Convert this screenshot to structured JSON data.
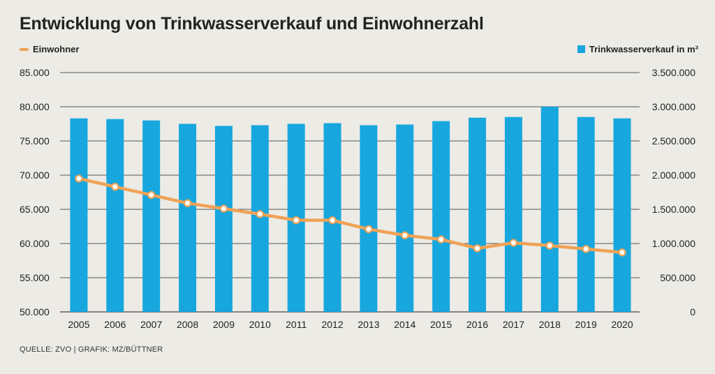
{
  "chart_data": {
    "type": "bar",
    "title": "Entwicklung von Trinkwasserverkauf und Einwohnerzahl",
    "categories": [
      "2005",
      "2006",
      "2007",
      "2008",
      "2009",
      "2010",
      "2011",
      "2012",
      "2013",
      "2014",
      "2015",
      "2016",
      "2017",
      "2018",
      "2019",
      "2020"
    ],
    "series": [
      {
        "name": "Trinkwasserverkauf in m³",
        "type": "bar",
        "axis": "right",
        "color": "#17a7de",
        "values": [
          2830000,
          2820000,
          2800000,
          2750000,
          2720000,
          2730000,
          2750000,
          2760000,
          2730000,
          2740000,
          2790000,
          2840000,
          2850000,
          3000000,
          2850000,
          2830000
        ]
      },
      {
        "name": "Einwohner",
        "type": "line",
        "axis": "left",
        "color": "#f0a256",
        "values": [
          69500,
          68300,
          67100,
          65900,
          65100,
          64300,
          63400,
          63400,
          62100,
          61200,
          60600,
          59300,
          60100,
          59700,
          59200,
          58700
        ]
      }
    ],
    "y_left": {
      "lim": [
        50000,
        85000
      ],
      "ticks": [
        50000,
        55000,
        60000,
        65000,
        70000,
        75000,
        80000,
        85000
      ],
      "tick_labels": [
        "50.000",
        "55.000",
        "60.000",
        "65.000",
        "70.000",
        "75.000",
        "80.000",
        "85.000"
      ]
    },
    "y_right": {
      "lim": [
        0,
        3500000
      ],
      "ticks": [
        0,
        500000,
        1000000,
        1500000,
        2000000,
        2500000,
        3000000,
        3500000
      ],
      "tick_labels": [
        "0",
        "500.000",
        "1.000.000",
        "1.500.000",
        "2.000.000",
        "2.500.000",
        "3.000.000",
        "3.500.000"
      ]
    },
    "grid": true,
    "legend": [
      {
        "label": "Einwohner",
        "position": "top-left"
      },
      {
        "label": "Trinkwasserverkauf in m³",
        "position": "top-right"
      }
    ]
  },
  "header": {
    "title": "Entwicklung von Trinkwasserverkauf und Einwohnerzahl"
  },
  "legend": {
    "left_label": "Einwohner",
    "right_label": "Trinkwasserverkauf in m³"
  },
  "footer": {
    "source": "QUELLE: ZVO | GRAFIK: MZ/BÜTTNER"
  }
}
